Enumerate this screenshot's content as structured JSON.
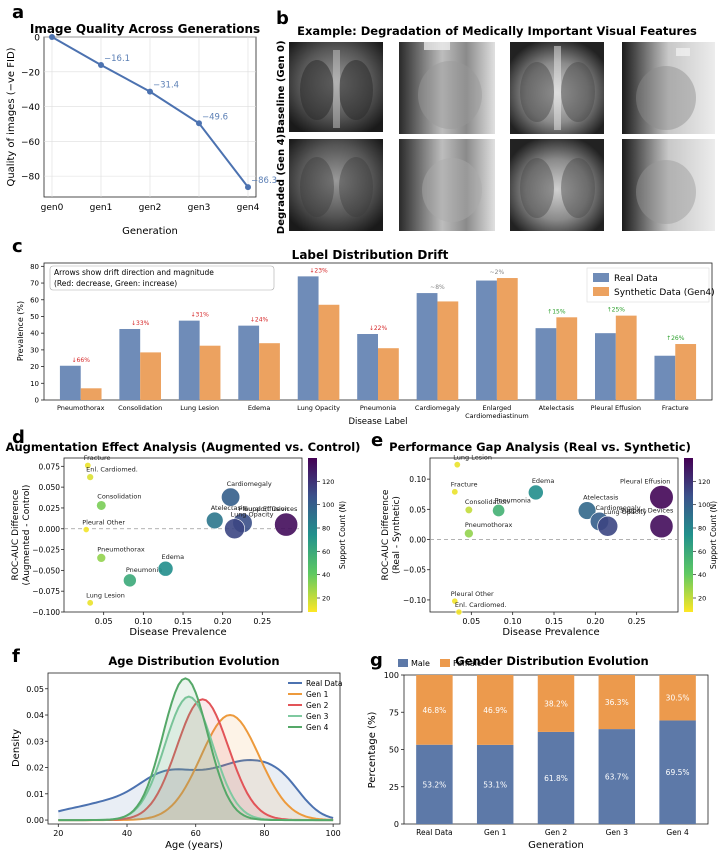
{
  "panels": {
    "a": {
      "letter": "a",
      "chart_data": {
        "type": "line",
        "title": "Image Quality Across Generations",
        "xlabel": "Generation",
        "ylabel": "Quality of images (−ve FID)",
        "categories": [
          "gen0",
          "gen1",
          "gen2",
          "gen3",
          "gen4"
        ],
        "values": [
          0,
          -16.1,
          -31.4,
          -49.6,
          -86.3
        ],
        "value_labels": [
          "",
          "−16.1",
          "−31.4",
          "−49.6",
          "−86.3"
        ],
        "ylim": [
          -92,
          0
        ],
        "yticks": [
          0,
          -20,
          -40,
          -60,
          -80
        ],
        "ytick_labels": [
          "0",
          "−20",
          "−40",
          "−60",
          "−80"
        ],
        "color": "#4c72b0",
        "grid": true
      }
    },
    "b": {
      "letter": "b",
      "title": "Example: Degradation of Medically Important Visual Features",
      "row_labels": [
        "Baseline (Gen 0)",
        "Degraded (Gen 4)"
      ]
    },
    "c": {
      "letter": "c",
      "chart_data": {
        "type": "bar",
        "title": "Label Distribution Drift",
        "xlabel": "Disease Label",
        "ylabel": "Prevalence (%)",
        "ylim": [
          0,
          82
        ],
        "yticks": [
          0,
          10,
          20,
          30,
          40,
          50,
          60,
          70,
          80
        ],
        "annotation": [
          "Arrows show drift direction and magnitude",
          "(Red: decrease, Green: increase)"
        ],
        "categories": [
          "Pneumothorax",
          "Consolidation",
          "Lung Lesion",
          "Edema",
          "Lung Opacity",
          "Pneumonia",
          "Cardiomegaly",
          "Enlarged Cardiomediastinum",
          "Atelectasis",
          "Pleural Effusion",
          "Fracture"
        ],
        "category_lines": [
          [
            "Pneumothorax"
          ],
          [
            "Consolidation"
          ],
          [
            "Lung Lesion"
          ],
          [
            "Edema"
          ],
          [
            "Lung Opacity"
          ],
          [
            "Pneumonia"
          ],
          [
            "Cardiomegaly"
          ],
          [
            "Enlarged",
            "Cardiomediastinum"
          ],
          [
            "Atelectasis"
          ],
          [
            "Pleural Effusion"
          ],
          [
            "Fracture"
          ]
        ],
        "series": [
          {
            "name": "Real Data",
            "color": "#6f8cb8",
            "values": [
              20.5,
              42.5,
              47.5,
              44.5,
              74,
              39.5,
              64,
              71.5,
              43,
              40,
              26.5
            ]
          },
          {
            "name": "Synthetic Data (Gen4)",
            "color": "#eca260",
            "values": [
              7,
              28.5,
              32.5,
              34,
              57,
              31,
              59,
              73,
              49.5,
              50.5,
              33.5
            ]
          }
        ],
        "drift_labels": [
          "↓66%",
          "↓33%",
          "↓31%",
          "↓24%",
          "↓23%",
          "↓22%",
          "~8%",
          "~2%",
          "↑15%",
          "↑25%",
          "↑26%"
        ],
        "drift_colors": [
          "#d62728",
          "#d62728",
          "#d62728",
          "#d62728",
          "#d62728",
          "#d62728",
          "#888888",
          "#888888",
          "#2ca02c",
          "#2ca02c",
          "#2ca02c"
        ],
        "legend_position": "top-right"
      }
    },
    "d": {
      "letter": "d",
      "chart_data": {
        "type": "scatter",
        "title": "Augmentation Effect Analysis (Augmented vs. Control)",
        "xlabel": "Disease Prevalence",
        "ylabel": [
          "ROC-AUC Difference",
          "(Augmented - Control)"
        ],
        "xlim": [
          0.0,
          0.3
        ],
        "ylim": [
          -0.1,
          0.085
        ],
        "xticks": [
          0.05,
          0.1,
          0.15,
          0.2,
          0.25
        ],
        "xtick_labels": [
          "0.05",
          "0.10",
          "0.15",
          "0.20",
          "0.25"
        ],
        "yticks": [
          -0.1,
          -0.075,
          -0.05,
          -0.025,
          0.0,
          0.025,
          0.05,
          0.075
        ],
        "ytick_labels": [
          "−0.100",
          "−0.075",
          "−0.050",
          "−0.025",
          "0.000",
          "0.025",
          "0.050",
          "0.075"
        ],
        "colorbar": {
          "label": "Support Count (N)",
          "min": 8,
          "max": 140,
          "ticks": [
            20,
            40,
            60,
            80,
            100,
            120
          ],
          "tick_labels": [
            "20",
            "40",
            "60",
            "80",
            "100",
            "120"
          ]
        },
        "points": [
          {
            "label": "Fracture",
            "x": 0.03,
            "y": 0.076,
            "n": 12
          },
          {
            "label": "Enl. Cardiomed.",
            "x": 0.033,
            "y": 0.062,
            "n": 15
          },
          {
            "label": "Consolidation",
            "x": 0.047,
            "y": 0.028,
            "n": 35
          },
          {
            "label": "Pleural Other",
            "x": 0.028,
            "y": -0.001,
            "n": 10
          },
          {
            "label": "Pneumothorax",
            "x": 0.047,
            "y": -0.035,
            "n": 30
          },
          {
            "label": "Pneumonia",
            "x": 0.083,
            "y": -0.062,
            "n": 60
          },
          {
            "label": "Edema",
            "x": 0.128,
            "y": -0.048,
            "n": 75
          },
          {
            "label": "Lung Lesion",
            "x": 0.033,
            "y": -0.089,
            "n": 12
          },
          {
            "label": "Atelectasis",
            "x": 0.19,
            "y": 0.01,
            "n": 88
          },
          {
            "label": "Cardiomegaly",
            "x": 0.21,
            "y": 0.038,
            "n": 100
          },
          {
            "label": "Pleural Effusion",
            "x": 0.225,
            "y": 0.007,
            "n": 108
          },
          {
            "label": "Lung Opacity",
            "x": 0.215,
            "y": 0.0,
            "n": 112
          },
          {
            "label": "Support Devices",
            "x": 0.28,
            "y": 0.005,
            "n": 135
          }
        ]
      }
    },
    "e": {
      "letter": "e",
      "chart_data": {
        "type": "scatter",
        "title": "Performance Gap Analysis (Real vs. Synthetic)",
        "xlabel": "Disease Prevalence",
        "ylabel": [
          "ROC-AUC Difference",
          "(Real - Synthetic)"
        ],
        "xlim": [
          0.0,
          0.3
        ],
        "ylim": [
          -0.12,
          0.135
        ],
        "xticks": [
          0.05,
          0.1,
          0.15,
          0.2,
          0.25
        ],
        "xtick_labels": [
          "0.05",
          "0.10",
          "0.15",
          "0.20",
          "0.25"
        ],
        "yticks": [
          -0.1,
          -0.05,
          0.0,
          0.05,
          0.1
        ],
        "ytick_labels": [
          "−0.10",
          "−0.05",
          "0.00",
          "0.05",
          "0.10"
        ],
        "colorbar": {
          "label": "Support Count (N)",
          "min": 8,
          "max": 140,
          "ticks": [
            20,
            40,
            60,
            80,
            100,
            120
          ],
          "tick_labels": [
            "20",
            "40",
            "60",
            "80",
            "100",
            "120"
          ]
        },
        "points": [
          {
            "label": "Lung Lesion",
            "x": 0.033,
            "y": 0.124,
            "n": 12
          },
          {
            "label": "Fracture",
            "x": 0.03,
            "y": 0.079,
            "n": 12
          },
          {
            "label": "Consolidation",
            "x": 0.047,
            "y": 0.049,
            "n": 20
          },
          {
            "label": "Pneumothorax",
            "x": 0.047,
            "y": 0.01,
            "n": 30
          },
          {
            "label": "Pneumonia",
            "x": 0.083,
            "y": 0.048,
            "n": 55
          },
          {
            "label": "Edema",
            "x": 0.128,
            "y": 0.078,
            "n": 75
          },
          {
            "label": "Atelectasis",
            "x": 0.19,
            "y": 0.048,
            "n": 95
          },
          {
            "label": "Cardiomegaly",
            "x": 0.205,
            "y": 0.03,
            "n": 100
          },
          {
            "label": "Lung Opacity",
            "x": 0.215,
            "y": 0.022,
            "n": 112
          },
          {
            "label": "Pleural Effusion",
            "x": 0.28,
            "y": 0.07,
            "n": 138
          },
          {
            "label": "Support Devices",
            "x": 0.28,
            "y": 0.022,
            "n": 135
          },
          {
            "label": "Pleural Other",
            "x": 0.03,
            "y": -0.102,
            "n": 10
          },
          {
            "label": "Enl. Cardiomed.",
            "x": 0.035,
            "y": -0.12,
            "n": 10
          }
        ]
      }
    },
    "f": {
      "letter": "f",
      "chart_data": {
        "type": "area",
        "title": "Age Distribution Evolution",
        "xlabel": "Age (years)",
        "ylabel": "Density",
        "xlim": [
          17,
          102
        ],
        "ylim": [
          -0.0015,
          0.056
        ],
        "xticks": [
          20,
          40,
          60,
          80,
          100
        ],
        "yticks": [
          0.0,
          0.01,
          0.02,
          0.03,
          0.04,
          0.05
        ],
        "ytick_labels": [
          "0.00",
          "0.01",
          "0.02",
          "0.03",
          "0.04",
          "0.05"
        ],
        "legend_position": "top-right",
        "series": [
          {
            "name": "Real Data",
            "color": "#4c72b0",
            "mu": [
              [
                20,
                0.0015,
                5
              ],
              [
                32,
                0.0055,
                8
              ],
              [
                49,
                0.013,
                8
              ],
              [
                62,
                0.012,
                9
              ],
              [
                76,
                0.017,
                8
              ],
              [
                86,
                0.009,
                6
              ]
            ]
          },
          {
            "name": "Gen 1",
            "color": "#ed9a3c",
            "mu": [
              [
                70,
                0.04,
                8.5
              ]
            ]
          },
          {
            "name": "Gen 2",
            "color": "#e25458",
            "mu": [
              [
                62,
                0.046,
                7.5
              ]
            ]
          },
          {
            "name": "Gen 3",
            "color": "#7fc9a0",
            "mu": [
              [
                58,
                0.047,
                7.0
              ]
            ]
          },
          {
            "name": "Gen 4",
            "color": "#55a868",
            "mu": [
              [
                57,
                0.054,
                6.5
              ]
            ]
          }
        ]
      }
    },
    "g": {
      "letter": "g",
      "chart_data": {
        "type": "bar",
        "title": "Gender Distribution Evolution",
        "xlabel": "Generation",
        "ylabel": "Percentage (%)",
        "ylim": [
          0,
          100
        ],
        "yticks": [
          0,
          25,
          50,
          75,
          100
        ],
        "categories": [
          "Real Data",
          "Gen 1",
          "Gen 2",
          "Gen 3",
          "Gen 4"
        ],
        "series": [
          {
            "name": "Male",
            "color": "#5d79a8",
            "values": [
              53.2,
              53.1,
              61.8,
              63.7,
              69.5
            ],
            "labels": [
              "53.2%",
              "53.1%",
              "61.8%",
              "63.7%",
              "69.5%"
            ]
          },
          {
            "name": "Female",
            "color": "#ec9a4d",
            "values": [
              46.8,
              46.9,
              38.2,
              36.3,
              30.5
            ],
            "labels": [
              "46.8%",
              "46.9%",
              "38.2%",
              "36.3%",
              "30.5%"
            ]
          }
        ],
        "legend_position": "top-left"
      }
    }
  }
}
